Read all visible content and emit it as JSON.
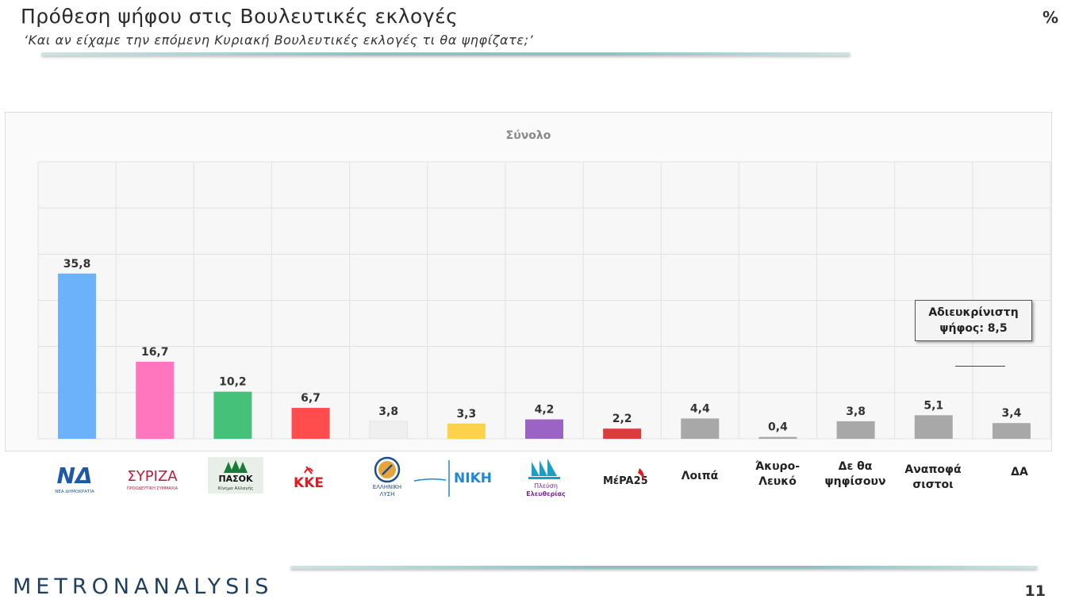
{
  "header": {
    "title": "Πρόθεση ψήφου στις Βουλευτικές εκλογές",
    "subtitle": "‘Και αν είχαμε την επόμενη Κυριακή Βουλευτικές εκλογές τι θα ψηφίζατε;’",
    "unit": "%"
  },
  "chart_data": {
    "type": "bar",
    "title": "Σύνολο",
    "xlabel": "",
    "ylabel": "",
    "ylim": [
      0,
      60
    ],
    "grid": true,
    "categories": [
      "ΝΔ",
      "ΣΥΡΙΖΑ",
      "ΠΑΣΟΚ",
      "ΚΚΕ",
      "Ελληνική Λύση",
      "ΝΙΚΗ",
      "Πλεύση Ελευθερίας",
      "ΜέΡΑ25",
      "Λοιπά",
      "Άκυρο-Λευκό",
      "Δε θα ψηφίσουν",
      "Αναποφάσιστοι",
      "ΔΑ"
    ],
    "values": [
      35.8,
      16.7,
      10.2,
      6.7,
      3.8,
      3.3,
      4.2,
      2.2,
      4.4,
      0.4,
      3.8,
      5.1,
      3.4
    ],
    "value_labels": [
      "35,8",
      "16,7",
      "10,2",
      "6,7",
      "3,8",
      "3,3",
      "4,2",
      "2,2",
      "4,4",
      "0,4",
      "3,8",
      "5,1",
      "3,4"
    ],
    "colors": [
      "#6bb2fb",
      "#ff75be",
      "#45c17a",
      "#ff4d4d",
      "#efefef",
      "#ffd24d",
      "#9b63c3",
      "#db3d3d",
      "#a8a8a8",
      "#a8a8a8",
      "#a8a8a8",
      "#a8a8a8",
      "#a8a8a8"
    ]
  },
  "logos": {
    "nd": {
      "main": "ΝΔ",
      "sub": "ΝΕΑ ΔΗΜΟΚΡΑΤΙΑ",
      "color": "#1c5aa8"
    },
    "syriza": {
      "main": "ΣΥΡΙΖΑ",
      "sub": "ΠΡΟΟΔΕΥΤΙΚΗ ΣΥΜΜΑΧΙΑ",
      "color": "#b71c3c"
    },
    "pasok": {
      "main": "ΠΑΣΟΚ",
      "sub": "Κίνημα Αλλαγής",
      "color": "#1a7a3a"
    },
    "kke": {
      "main": "ΚΚΕ",
      "color": "#e11b22"
    },
    "elliniki": {
      "line1": "ΕΛΛΗΝΙΚΗ",
      "line2": "ΛΥΣΗ",
      "color": "#1a4d8c"
    },
    "niki": {
      "main": "ΝΙΚΗ",
      "color": "#1e88d6"
    },
    "plefsi": {
      "line1": "Πλεύση",
      "line2": "Ελευθερίας",
      "color": "#7b2c91"
    },
    "mera": {
      "main": "MέPA25",
      "color": "#d81f26"
    }
  },
  "text_categories": [
    "Λοιπά",
    "Άκυρο-\nΛευκό",
    "Δε θα\nψηφίσουν",
    "Αναποφά\nσιστοι",
    "ΔΑ"
  ],
  "callout": {
    "line1": "Αδιευκρίνιστη",
    "line2": "ψήφος: 8,5"
  },
  "footer": {
    "brand": "METRONANALYSIS",
    "page": "11"
  }
}
